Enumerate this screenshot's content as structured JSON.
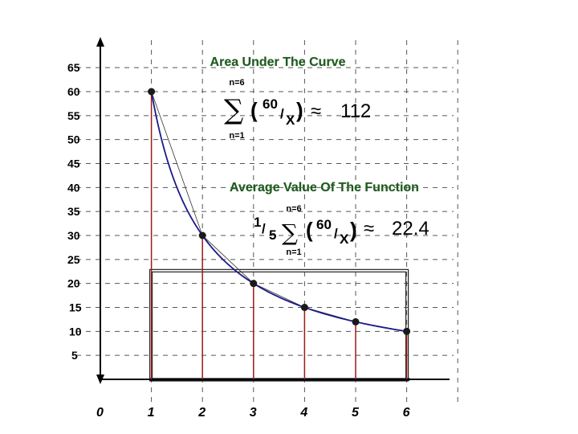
{
  "chart_data": {
    "type": "line",
    "x": [
      1,
      2,
      3,
      4,
      5,
      6
    ],
    "series": [
      {
        "values": [
          60,
          30,
          20,
          15,
          12,
          10
        ]
      }
    ],
    "x_ticks": [
      "0",
      "1",
      "2",
      "3",
      "4",
      "5",
      "6"
    ],
    "y_ticks": [
      "5",
      "10",
      "15",
      "20",
      "25",
      "30",
      "35",
      "40",
      "45",
      "50",
      "55",
      "60",
      "65"
    ],
    "xlim": [
      0,
      6.5
    ],
    "ylim": [
      0,
      67
    ],
    "grid": true,
    "average_value": 22.4,
    "colors": {
      "curve": "#1b1b8a",
      "stems": "#9b1b1b",
      "points": "#1a1a1a",
      "title": "#1f5a1f"
    }
  },
  "annotations": {
    "area": {
      "title": "Area Under The Curve",
      "upper": "n=6",
      "lower": "n=1",
      "sigma": "∑",
      "numerator": "60",
      "slash": "/",
      "variable": "X",
      "approx": "≈",
      "result": "112"
    },
    "average": {
      "title": "Average Value Of The Function",
      "frac_num": "1",
      "frac_den": "5",
      "upper": "n=6",
      "lower": "n=1",
      "sigma": "∑",
      "numerator": "60",
      "slash": "/",
      "variable": "X",
      "approx": "≈",
      "result": "22.4"
    }
  }
}
